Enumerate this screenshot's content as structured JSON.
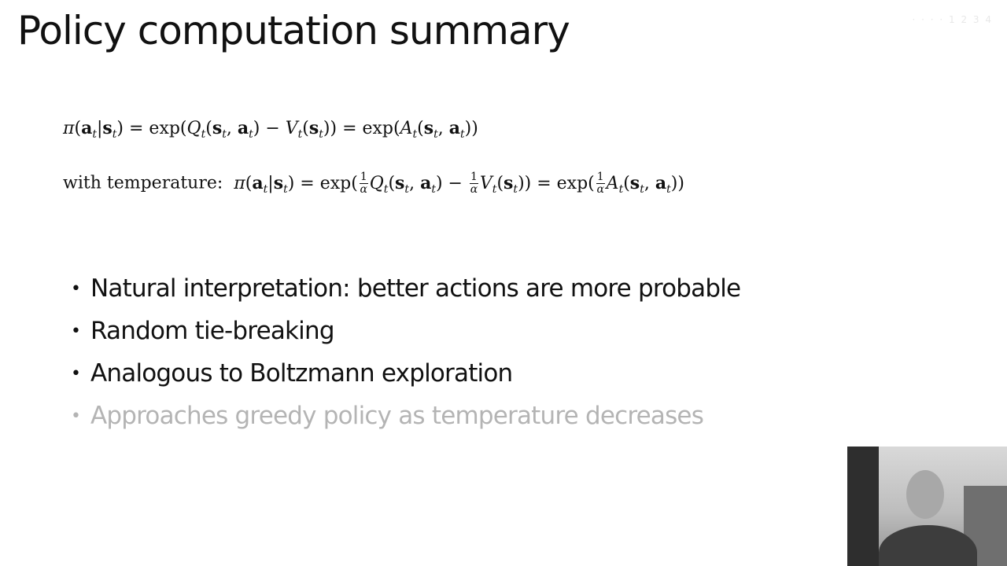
{
  "slide": {
    "title": "Policy computation summary",
    "watermark": "· · · ·  1 2 3 4",
    "equations": {
      "eq1": {
        "lhs": "π(a|s)",
        "text": "π(at|st) = exp(Qt(st, at) − Vt(st)) = exp(At(st, at))"
      },
      "eq2": {
        "prefix": "with temperature:",
        "text": "π(at|st) = exp(1/α Qt(st, at) − 1/α Vt(st)) = exp(1/α At(st, at))"
      }
    },
    "bullets": [
      {
        "text": "Natural interpretation: better actions are more probable",
        "state": "active"
      },
      {
        "text": "Random tie-breaking",
        "state": "active"
      },
      {
        "text": "Analogous to Boltzmann exploration",
        "state": "active"
      },
      {
        "text": "Approaches greedy policy as temperature decreases",
        "state": "dimmed"
      }
    ],
    "bullet_glyph": "•",
    "colors": {
      "text": "#111111",
      "dimmed": "#b4b4b4",
      "background": "#ffffff"
    }
  }
}
